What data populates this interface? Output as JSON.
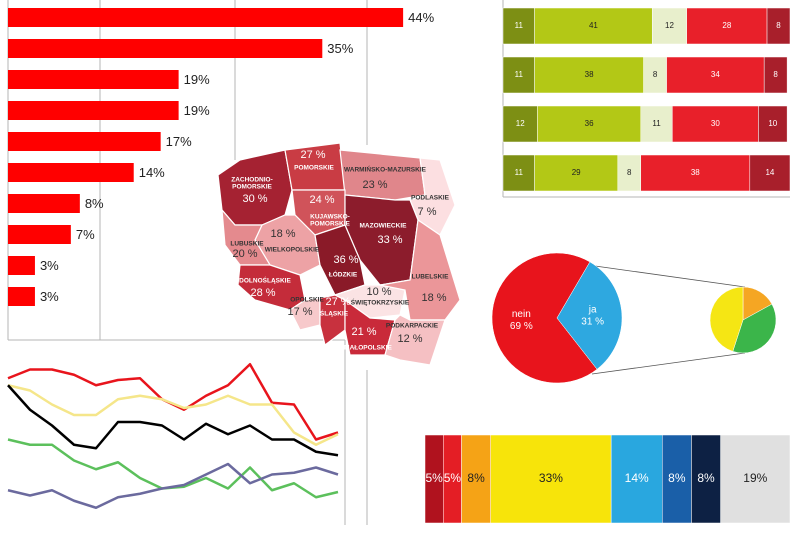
{
  "chart_data": [
    {
      "type": "bar",
      "orientation": "horizontal",
      "categories": [
        null,
        null,
        null,
        null,
        null,
        null,
        null,
        null,
        null,
        null
      ],
      "values": [
        44,
        35,
        19,
        19,
        17,
        14,
        8,
        7,
        3,
        3
      ],
      "value_labels": [
        "44%",
        "35%",
        "19%",
        "19%",
        "17%",
        "14%",
        "8%",
        "7%",
        "3%",
        "3%"
      ],
      "color": "#ff0000",
      "xlim": [
        0,
        50
      ]
    },
    {
      "type": "stacked_bar",
      "orientation": "horizontal",
      "categories": [
        null,
        null,
        null,
        null
      ],
      "xlim": [
        0,
        100
      ],
      "series": [
        {
          "color": "#7d8f14",
          "values": [
            11,
            11,
            12,
            11
          ]
        },
        {
          "color": "#b3c816",
          "values": [
            41,
            38,
            36,
            29
          ]
        },
        {
          "color": "#e8efcc",
          "values": [
            12,
            8,
            11,
            8
          ]
        },
        {
          "color": "#e8202a",
          "values": [
            28,
            34,
            30,
            38
          ]
        },
        {
          "color": "#a81f2b",
          "values": [
            8,
            8,
            10,
            14
          ]
        }
      ]
    },
    {
      "type": "map",
      "regions": [
        {
          "name": "ZACHODNIO-\nPOMORSKIE",
          "value": 30,
          "value_label": "30 %",
          "color": "#a52232"
        },
        {
          "name": "POMORSKIE",
          "value": 27,
          "value_label": "27 %",
          "color": "#c93c44"
        },
        {
          "name": "WARMIŃSKO-MAZURSKIE",
          "value": 23,
          "value_label": "23 %",
          "color": "#e0868b"
        },
        {
          "name": "PODLASKIE",
          "value": 7,
          "value_label": "7 %",
          "color": "#fcdfe1"
        },
        {
          "name": "KUJAWSKO-\nPOMORSKIE",
          "value": 24,
          "value_label": "24 %",
          "color": "#d0535a"
        },
        {
          "name": "WIELKOPOLSKIE",
          "value": 18,
          "value_label": "18 %",
          "color": "#eda2a5"
        },
        {
          "name": "LUBUSKIE",
          "value": 20,
          "value_label": "20 %",
          "color": "#e48a8e"
        },
        {
          "name": "MAZOWIECKIE",
          "value": 33,
          "value_label": "33 %",
          "color": "#8c1c2c"
        },
        {
          "name": "ŁÓDZKIE",
          "value": 36,
          "value_label": "36 %",
          "color": "#8a1a28"
        },
        {
          "name": "DOLNOŚLĄSKIE",
          "value": 28,
          "value_label": "28 %",
          "color": "#c42c3a"
        },
        {
          "name": "OPOLSKIE",
          "value": 17,
          "value_label": "17 %",
          "color": "#f7c9cb"
        },
        {
          "name": "ŚLĄSKIE",
          "value": 27,
          "value_label": "27 %",
          "color": "#c8313e"
        },
        {
          "name": "ŚWIĘTOKRZYSKIE",
          "value": 10,
          "value_label": "10 %",
          "color": "#fbe3e4"
        },
        {
          "name": "LUBELSKIE",
          "value": 18,
          "value_label": "18 %",
          "color": "#eb9699"
        },
        {
          "name": "MAŁOPOLSKIE",
          "value": 21,
          "value_label": "21 %",
          "color": "#c92a3a"
        },
        {
          "name": "PODKARPACKIE",
          "value": 12,
          "value_label": "12 %",
          "color": "#f5c0c3"
        }
      ]
    },
    {
      "type": "line",
      "categories": [
        null,
        null,
        null,
        null,
        null,
        null,
        null,
        null,
        null,
        null,
        null,
        null,
        null,
        null,
        null,
        null
      ],
      "ylim": [
        0,
        100
      ],
      "series": [
        {
          "color": "#e8141c",
          "values": [
            81,
            86,
            86,
            83,
            77,
            80,
            81,
            69,
            63,
            71,
            77,
            89,
            67,
            66,
            46,
            50
          ]
        },
        {
          "color": "#f5e68a",
          "values": [
            77,
            74,
            66,
            60,
            60,
            69,
            71,
            69,
            64,
            66,
            71,
            66,
            66,
            50,
            43,
            49
          ]
        },
        {
          "color": "#000000",
          "values": [
            77,
            63,
            54,
            43,
            41,
            56,
            56,
            54,
            46,
            55,
            49,
            54,
            46,
            46,
            39,
            37
          ]
        },
        {
          "color": "#5cc05c",
          "values": [
            46,
            43,
            43,
            34,
            29,
            33,
            24,
            18,
            19,
            24,
            18,
            30,
            17,
            21,
            13,
            16
          ]
        },
        {
          "color": "#6b6a9e",
          "values": [
            17,
            14,
            17,
            11,
            7,
            13,
            15,
            18,
            20,
            26,
            32,
            21,
            26,
            27,
            30,
            26
          ]
        }
      ]
    },
    {
      "type": "pie",
      "categories": [
        "nein",
        "ja"
      ],
      "values": [
        69,
        31
      ],
      "value_labels": [
        "69 %",
        "31 %"
      ],
      "colors": [
        "#e8141c",
        "#2ea8e0"
      ]
    },
    {
      "type": "pie",
      "values": [
        17,
        38,
        45
      ],
      "colors": [
        "#f5a623",
        "#3bb54a",
        "#f5e614"
      ]
    },
    {
      "type": "stacked_bar",
      "orientation": "horizontal",
      "categories": [
        null
      ],
      "xlim": [
        0,
        100
      ],
      "series": [
        {
          "color": "#b0121e",
          "values": [
            5
          ],
          "value_labels": [
            "5%"
          ]
        },
        {
          "color": "#e41e25",
          "values": [
            5
          ],
          "value_labels": [
            "5%"
          ]
        },
        {
          "color": "#f5a316",
          "values": [
            8
          ],
          "value_labels": [
            "8%"
          ]
        },
        {
          "color": "#f7e40a",
          "values": [
            33
          ],
          "value_labels": [
            "33%"
          ]
        },
        {
          "color": "#29a7df",
          "values": [
            14
          ],
          "value_labels": [
            "14%"
          ]
        },
        {
          "color": "#1a5fa8",
          "values": [
            8
          ],
          "value_labels": [
            "8%"
          ]
        },
        {
          "color": "#0d2144",
          "values": [
            8
          ],
          "value_labels": [
            "8%"
          ]
        },
        {
          "color": "#e0e0e0",
          "values": [
            19
          ],
          "value_labels": [
            "19%"
          ]
        }
      ]
    }
  ]
}
